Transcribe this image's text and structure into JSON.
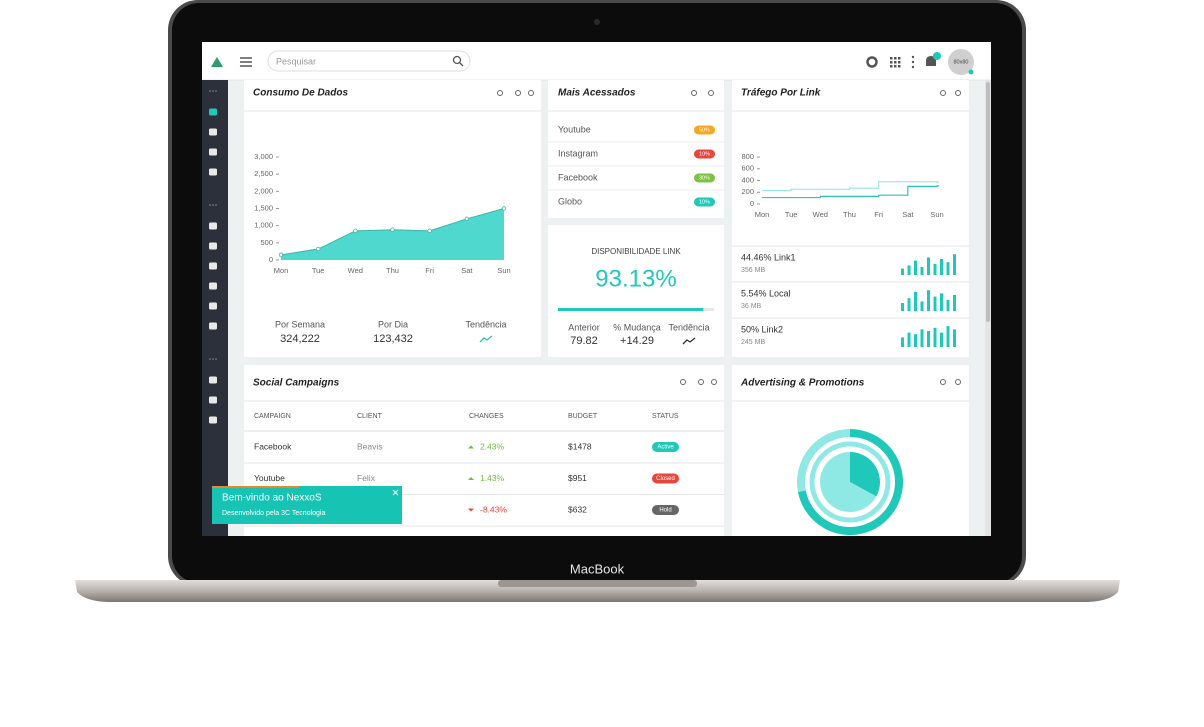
{
  "device_label": "MacBook",
  "header": {
    "search_placeholder": "Pesquisar",
    "avatar": "80x80"
  },
  "consumo": {
    "title": "Consumo De Dados",
    "chart": {
      "type": "area",
      "categories": [
        "Mon",
        "Tue",
        "Wed",
        "Thu",
        "Fri",
        "Sat",
        "Sun"
      ],
      "values": [
        150,
        320,
        850,
        880,
        850,
        1200,
        1500
      ],
      "color": "#4fd8cd",
      "ylim": [
        0,
        3000
      ],
      "yticks": [
        0,
        500,
        {
          "value": 1000,
          "label": "1,000"
        },
        {
          "value": 1500,
          "label": "1,500"
        },
        {
          "value": 2000,
          "label": "2,000"
        },
        {
          "value": 2500,
          "label": "2,500"
        },
        {
          "value": 3000,
          "label": "3,000"
        }
      ]
    },
    "stats": [
      {
        "label": "Por Semana",
        "value": "324,222"
      },
      {
        "label": "Por Dia",
        "value": "123,432"
      },
      {
        "label": "Tendência"
      }
    ]
  },
  "mais_acessados": {
    "title": "Mais Acessados",
    "items": [
      {
        "name": "Youtube",
        "badge": "50%",
        "color": "#f5a623"
      },
      {
        "name": "Instagram",
        "badge": "10%",
        "color": "#e8453c"
      },
      {
        "name": "Facebook",
        "badge": "30%",
        "color": "#7cc142"
      },
      {
        "name": "Globo",
        "badge": "10%",
        "color": "#1fc8b8"
      }
    ]
  },
  "disponibilidade": {
    "title": "DISPONIBILIDADE LINK",
    "value": 93.13,
    "value_label": "93.13%",
    "stats": [
      {
        "label": "Anterior",
        "value": "79.82"
      },
      {
        "label": "% Mudança",
        "value": "+14.29"
      },
      {
        "label": "Tendência"
      }
    ]
  },
  "trafego": {
    "title": "Tráfego Por Link",
    "chart": {
      "type": "step",
      "categories": [
        "Mon",
        "Tue",
        "Wed",
        "Thu",
        "Fri",
        "Sat",
        "Sun"
      ],
      "series": [
        {
          "color": "#9be8e2",
          "values": [
            230,
            250,
            250,
            270,
            380,
            380,
            370
          ]
        },
        {
          "color": "#2bc4b8",
          "values": [
            110,
            110,
            130,
            130,
            150,
            300,
            310
          ]
        }
      ],
      "ylim": [
        0,
        800
      ],
      "yticks": [
        0,
        200,
        400,
        600,
        800
      ]
    },
    "links": [
      {
        "label": "44.46% Link1",
        "size": "356 MB",
        "bars": [
          4,
          6,
          9,
          5,
          11,
          7,
          10,
          8,
          13
        ]
      },
      {
        "label": "5.54% Local",
        "size": "36 MB",
        "bars": [
          5,
          8,
          12,
          6,
          13,
          9,
          11,
          7,
          10
        ]
      },
      {
        "label": "50% Link2",
        "size": "245 MB",
        "bars": [
          6,
          9,
          8,
          11,
          10,
          12,
          9,
          13,
          11
        ]
      }
    ]
  },
  "campaigns": {
    "title": "Social Campaigns",
    "columns": [
      "CAMPAIGN",
      "CLIENT",
      "CHANGES",
      "BUDGET",
      "STATUS"
    ],
    "rows": [
      {
        "campaign": "Facebook",
        "client": "Beavis",
        "change": "2.43%",
        "trend": "up",
        "budget": "$1478",
        "status": "Active",
        "status_color": "#1fc8b8"
      },
      {
        "campaign": "Youtube",
        "client": "Felix",
        "change": "1.43%",
        "trend": "up",
        "budget": "$951",
        "status": "Closed",
        "status_color": "#e8453c"
      },
      {
        "change": "-8.43%",
        "trend": "down",
        "budget": "$632",
        "status": "Hold",
        "status_color": "#666666"
      }
    ]
  },
  "advertising": {
    "title": "Advertising & Promotions",
    "outer": {
      "values": [
        72,
        28
      ],
      "colors": [
        "#1fc8b8",
        "#8ee8e4"
      ]
    },
    "inner": {
      "values": [
        33,
        67
      ],
      "colors": [
        "#1fc8b8",
        "#8ee8e4"
      ]
    }
  },
  "toast": {
    "title": "Bem-vindo ao NexxoS",
    "subtitle": "Desenvolvido pela 3C Tecnologia"
  }
}
